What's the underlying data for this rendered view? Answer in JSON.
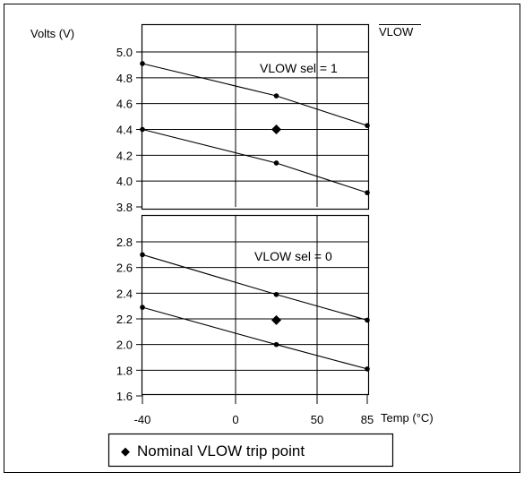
{
  "chart_data": {
    "type": "line",
    "ylabel": "Volts (V)",
    "xlabel": "Temp (°C)",
    "top_right_label": "VLOW",
    "x_ticks": [
      "-40",
      "0",
      "50",
      "85"
    ],
    "legend": {
      "marker": "◆",
      "text": "Nominal VLOW trip point"
    },
    "panels": [
      {
        "annotation": "VLOW sel = 1",
        "ylim": [
          3.8,
          5.0
        ],
        "yticks": [
          "5.0",
          "4.8",
          "4.6",
          "4.4",
          "4.2",
          "4.0",
          "3.8"
        ],
        "series": [
          {
            "x": [
              -40,
              25,
              85
            ],
            "y": [
              4.91,
              4.66,
              4.43
            ]
          },
          {
            "x": [
              -40,
              25,
              85
            ],
            "y": [
              4.4,
              4.14,
              3.91
            ]
          }
        ],
        "nominal": {
          "x": 25,
          "y": 4.4
        }
      },
      {
        "annotation": "VLOW sel = 0",
        "ylim": [
          1.6,
          2.8
        ],
        "yticks": [
          "2.8",
          "2.6",
          "2.4",
          "2.2",
          "2.0",
          "1.8",
          "1.6"
        ],
        "series": [
          {
            "x": [
              -40,
              25,
              85
            ],
            "y": [
              2.7,
              2.39,
              2.19
            ]
          },
          {
            "x": [
              -40,
              25,
              85
            ],
            "y": [
              2.29,
              2.0,
              1.81
            ]
          }
        ],
        "nominal": {
          "x": 25,
          "y": 2.19
        }
      }
    ]
  }
}
